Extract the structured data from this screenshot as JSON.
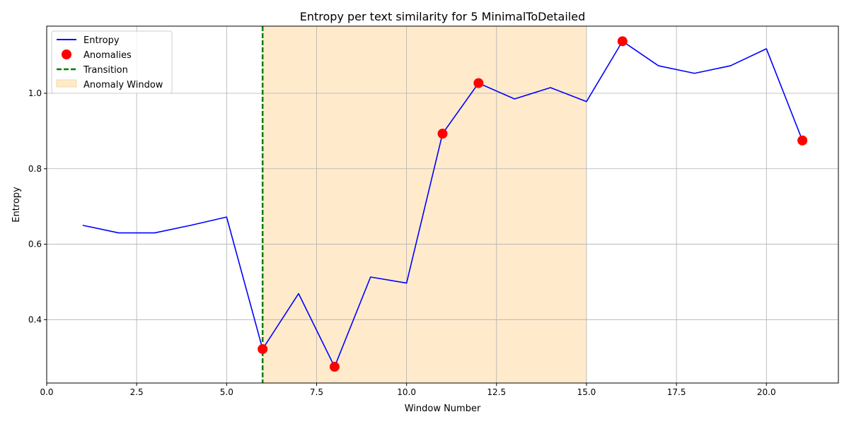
{
  "chart_data": {
    "type": "line",
    "title": "Entropy per text similarity for 5 MinimalToDetailed",
    "xlabel": "Window Number",
    "ylabel": "Entropy",
    "xlim": [
      0.0,
      22.0
    ],
    "ylim": [
      0.232,
      1.178
    ],
    "x_ticks": [
      0.0,
      2.5,
      5.0,
      7.5,
      10.0,
      12.5,
      15.0,
      17.5,
      20.0
    ],
    "x_tick_labels": [
      "0.0",
      "2.5",
      "5.0",
      "7.5",
      "10.0",
      "12.5",
      "15.0",
      "17.5",
      "20.0"
    ],
    "y_ticks": [
      0.4,
      0.6,
      0.8,
      1.0
    ],
    "y_tick_labels": [
      "0.4",
      "0.6",
      "0.8",
      "1.0"
    ],
    "grid": true,
    "legend_position": "top-left",
    "series": [
      {
        "name": "Entropy",
        "kind": "line",
        "color": "#0000ff",
        "x": [
          1,
          2,
          3,
          4,
          5,
          6,
          7,
          8,
          9,
          10,
          11,
          12,
          13,
          14,
          15,
          16,
          17,
          18,
          19,
          20,
          21
        ],
        "y": [
          0.65,
          0.63,
          0.63,
          0.65,
          0.672,
          0.322,
          0.469,
          0.275,
          0.513,
          0.497,
          0.893,
          1.027,
          0.985,
          1.015,
          0.978,
          1.138,
          1.073,
          1.053,
          1.073,
          1.118,
          0.875
        ]
      },
      {
        "name": "Anomalies",
        "kind": "scatter",
        "color": "#ff0000",
        "x": [
          6,
          8,
          11,
          12,
          16,
          21
        ],
        "y": [
          0.322,
          0.275,
          0.893,
          1.027,
          1.138,
          0.875
        ]
      }
    ],
    "transition": {
      "name": "Transition",
      "x": 6.0,
      "color": "#008000",
      "style": "dashed"
    },
    "anomaly_window": {
      "name": "Anomaly Window",
      "x_start": 6.0,
      "x_end": 15.0,
      "color": "#ffebcc"
    }
  }
}
